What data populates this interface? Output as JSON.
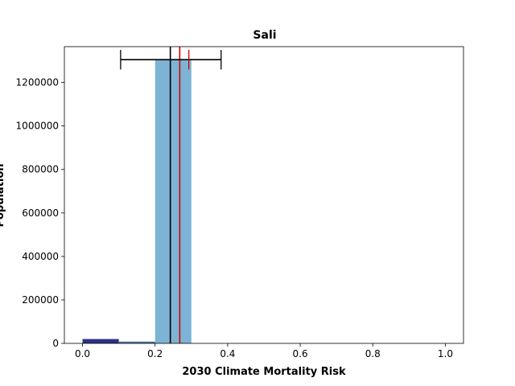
{
  "chart_data": {
    "type": "bar",
    "title": "Sali",
    "xlabel": "2030 Climate Mortality Risk",
    "ylabel": "Population",
    "xlim": [
      -0.05,
      1.05
    ],
    "ylim": [
      0,
      1365000
    ],
    "x_ticks": [
      0.0,
      0.2,
      0.4,
      0.6,
      0.8,
      1.0
    ],
    "x_tick_labels": [
      "0.0",
      "0.2",
      "0.4",
      "0.6",
      "0.8",
      "1.0"
    ],
    "y_ticks": [
      0,
      200000,
      400000,
      600000,
      800000,
      1000000,
      1200000
    ],
    "y_tick_labels": [
      "0",
      "200000",
      "400000",
      "600000",
      "800000",
      "1000000",
      "1200000"
    ],
    "bars": [
      {
        "x0": 0.0,
        "x1": 0.1,
        "value": 20000,
        "color": "#2e3185"
      },
      {
        "x0": 0.1,
        "x1": 0.2,
        "value": 8000,
        "color": "#4a6fa0"
      },
      {
        "x0": 0.2,
        "x1": 0.3,
        "value": 1305000,
        "color": "#7db3d4"
      }
    ],
    "vertical_lines": [
      {
        "x": 0.242,
        "color": "#000000"
      },
      {
        "x": 0.268,
        "color": "#cc0000"
      }
    ],
    "error_bars": [
      {
        "y": 1305000,
        "x_low": 0.105,
        "x_high": 0.382,
        "color": "#000000",
        "cap_half": 45000
      },
      {
        "y": 1305000,
        "x_low": 0.293,
        "x_high": 0.293,
        "color": "#cc0000",
        "cap_half": 45000
      }
    ]
  }
}
